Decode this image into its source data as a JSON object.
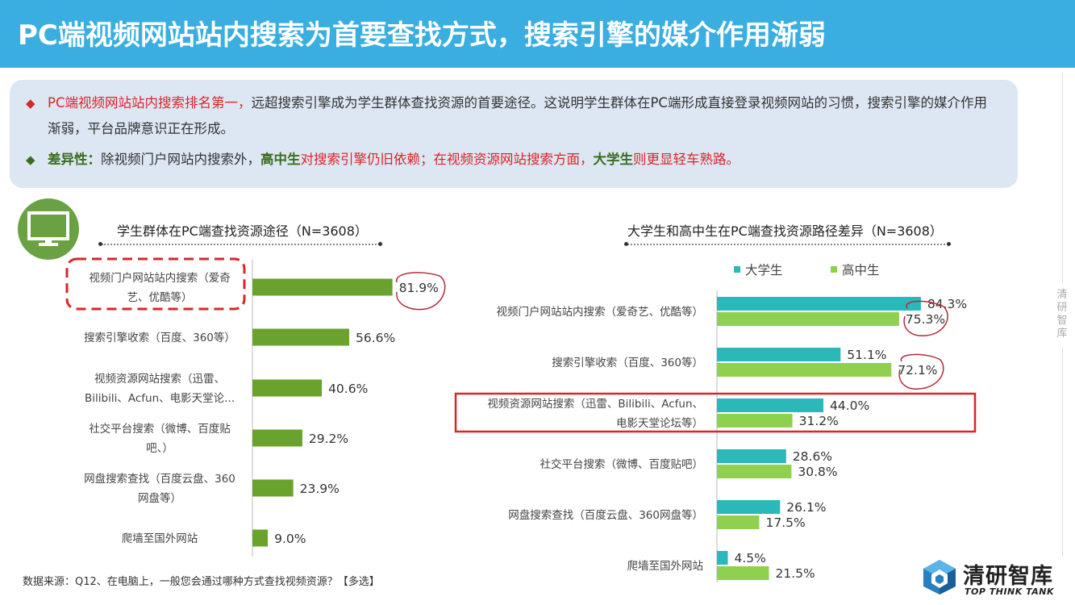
{
  "header": {
    "title": "PC端视频网站站内搜索为首要查找方式，搜索引擎的媒介作用渐弱"
  },
  "summary": {
    "bullet1_red": "PC端视频网站站内搜索排名第一，",
    "bullet1_rest": "远超搜索引擎成为学生群体查找资源的首要途径。这说明学生群体在PC端形成直接登录视频网站的习惯，搜索引擎的媒介作用渐弱，平台品牌意识正在形成。",
    "bullet2_label": "差异性：",
    "bullet2_part1": "除视频门户网站内搜索外，",
    "bullet2_hs": "高中生",
    "bullet2_part2": "对搜索引擎仍旧依赖；在视频资源网站搜索方面，",
    "bullet2_univ": "大学生",
    "bullet2_part3": "则更显轻车熟路。"
  },
  "chart_data": [
    {
      "type": "bar",
      "orientation": "horizontal",
      "title": "学生群体在PC端查找资源途径（N=3608）",
      "categories": [
        [
          "视频门户网站站内搜索（爱奇",
          "艺、优酷等）"
        ],
        [
          "搜索引擎收索（百度、360等）"
        ],
        [
          "视频资源网站搜索（迅雷、",
          "Bilibili、Acfun、电影天堂论..."
        ],
        [
          "社交平台搜索（微博、百度贴",
          "吧、）"
        ],
        [
          "网盘搜索查找（百度云盘、360",
          "网盘等）"
        ],
        [
          "爬墙至国外网站"
        ]
      ],
      "values": [
        81.9,
        56.6,
        40.6,
        29.2,
        23.9,
        9.0
      ],
      "labels": [
        "81.9%",
        "56.6%",
        "40.6%",
        "29.2%",
        "23.9%",
        "9.0%"
      ],
      "color": "#6aa22e",
      "grid": false
    },
    {
      "type": "bar",
      "orientation": "horizontal",
      "title": "大学生和高中生在PC端查找资源路径差异（N=3608）",
      "legend_position": "top",
      "categories": [
        [
          "视频门户网站站内搜索（爱奇艺、优酷等）"
        ],
        [
          "搜索引擎收索（百度、360等）"
        ],
        [
          "视频资源网站搜索（迅雷、Bilibili、Acfun、",
          "电影天堂论坛等）"
        ],
        [
          "社交平台搜索（微博、百度贴吧）"
        ],
        [
          "网盘搜索查找（百度云盘、360网盘等）"
        ],
        [
          "爬墙至国外网站"
        ]
      ],
      "series": [
        {
          "name": "大学生",
          "color": "#2ab8b8",
          "values": [
            84.3,
            51.1,
            44.0,
            28.6,
            26.1,
            4.5
          ],
          "labels": [
            "84.3%",
            "51.1%",
            "44.0%",
            "28.6%",
            "26.1%",
            "4.5%"
          ]
        },
        {
          "name": "高中生",
          "color": "#8fd14f",
          "values": [
            75.3,
            72.1,
            31.2,
            30.8,
            17.5,
            21.5
          ],
          "labels": [
            "75.3%",
            "72.1%",
            "31.2%",
            "30.8%",
            "17.5%",
            "21.5%"
          ]
        }
      ],
      "grid": false
    }
  ],
  "source": "数据来源：Q12、在电脑上，一般您会通过哪种方式查找视频资源？【多选】",
  "side_text": "清研智库",
  "logo": {
    "name": "清研智库",
    "sub": "TOP THINK TANK"
  },
  "colors": {
    "header": "#3aaee0",
    "highlight": "#d9262a",
    "accent_green": "#6aa243"
  },
  "icons": [
    "monitor-icon",
    "cube-logo-icon",
    "diamond-bullet-icon"
  ]
}
